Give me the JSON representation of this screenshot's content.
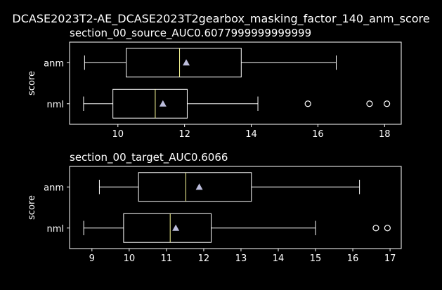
{
  "suptitle": "DCASE2023T2-AE_DCASE2023T2gearbox_masking_factor_140_anm_score",
  "colors": {
    "background": "#000000",
    "box": "#ffffff",
    "median": "#ffff99",
    "mean": "#bcbddc"
  },
  "chart_data": [
    {
      "type": "boxplot",
      "title": "section_00_source_AUC0.6077999999999999",
      "ylabel": "score",
      "orientation": "horizontal",
      "xlim": [
        8.55,
        18.5
      ],
      "xticks": [
        10,
        12,
        14,
        16,
        18
      ],
      "groups": [
        {
          "name": "anm",
          "whisker_low": 9.0,
          "q1": 10.25,
          "median": 11.85,
          "q3": 13.7,
          "whisker_high": 16.55,
          "mean": 12.05,
          "outliers": []
        },
        {
          "name": "nml",
          "whisker_low": 8.97,
          "q1": 9.85,
          "median": 11.12,
          "q3": 12.08,
          "whisker_high": 14.2,
          "mean": 11.35,
          "outliers": [
            15.7,
            17.55,
            18.07
          ]
        }
      ]
    },
    {
      "type": "boxplot",
      "title": "section_00_target_AUC0.6066",
      "ylabel": "score",
      "orientation": "horizontal",
      "xlim": [
        8.4,
        17.3
      ],
      "xticks": [
        9,
        10,
        11,
        12,
        13,
        14,
        15,
        16,
        17
      ],
      "groups": [
        {
          "name": "anm",
          "whisker_low": 9.2,
          "q1": 10.25,
          "median": 11.52,
          "q3": 13.28,
          "whisker_high": 16.18,
          "mean": 11.88,
          "outliers": []
        },
        {
          "name": "nml",
          "whisker_low": 8.78,
          "q1": 9.85,
          "median": 11.1,
          "q3": 12.2,
          "whisker_high": 15.0,
          "mean": 11.25,
          "outliers": [
            16.62,
            16.93
          ]
        }
      ]
    }
  ]
}
